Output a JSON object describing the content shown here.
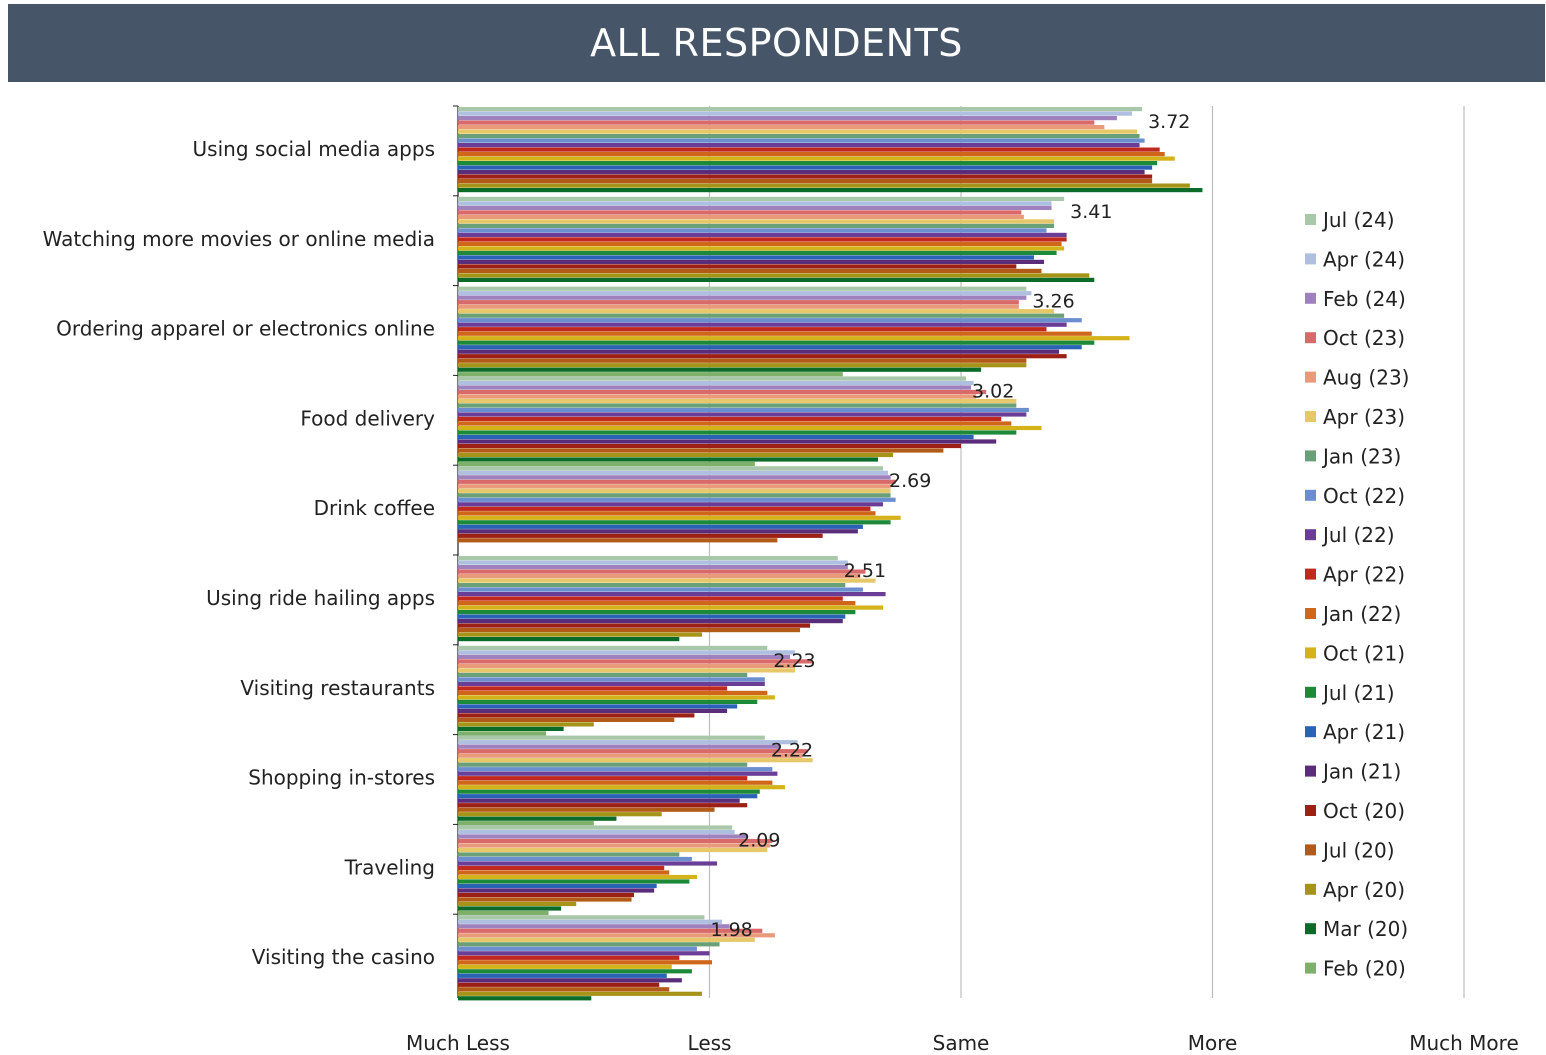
{
  "title": "ALL RESPONDENTS",
  "chart_data": {
    "type": "bar",
    "orientation": "horizontal",
    "title": "ALL RESPONDENTS",
    "xlim": [
      1,
      5
    ],
    "x_tick_labels": [
      "Much Less",
      "Less",
      "Same",
      "More",
      "Much More"
    ],
    "categories": [
      "Using social media apps",
      "Watching more movies or online media",
      "Ordering apparel or electronics online",
      "Food delivery",
      "Drink coffee",
      "Using ride hailing apps",
      "Visiting restaurants",
      "Shopping in-stores",
      "Traveling",
      "Visiting the casino"
    ],
    "data_labels": [
      "3.72",
      "3.41",
      "3.26",
      "3.02",
      "2.69",
      "2.51",
      "2.23",
      "2.22",
      "2.09",
      "1.98"
    ],
    "legend_position": "right",
    "grid": true,
    "series": [
      {
        "name": "Jul (24)",
        "color": "#a9c8a9",
        "values": [
          3.72,
          3.41,
          3.26,
          3.02,
          2.69,
          2.51,
          2.23,
          2.22,
          2.09,
          1.98
        ]
      },
      {
        "name": "Apr (24)",
        "color": "#aebfe0",
        "values": [
          3.68,
          3.36,
          3.28,
          3.05,
          2.71,
          2.55,
          2.34,
          2.35,
          2.1,
          2.05
        ]
      },
      {
        "name": "Feb (24)",
        "color": "#9f82bd",
        "values": [
          3.62,
          3.36,
          3.26,
          3.04,
          2.72,
          2.55,
          2.32,
          2.28,
          2.15,
          2.08
        ]
      },
      {
        "name": "Oct (23)",
        "color": "#d96a6a",
        "values": [
          3.53,
          3.24,
          3.23,
          3.1,
          2.74,
          2.62,
          2.41,
          2.39,
          2.25,
          2.21
        ]
      },
      {
        "name": "Aug (23)",
        "color": "#e89a7a",
        "values": [
          3.57,
          3.25,
          3.23,
          3.06,
          2.72,
          2.6,
          2.34,
          2.37,
          2.24,
          2.26
        ]
      },
      {
        "name": "Apr (23)",
        "color": "#e6c76a",
        "values": [
          3.7,
          3.37,
          3.37,
          3.22,
          2.72,
          2.66,
          2.34,
          2.41,
          2.23,
          2.18
        ]
      },
      {
        "name": "Jan (23)",
        "color": "#6aa077",
        "values": [
          3.71,
          3.37,
          3.41,
          3.22,
          2.72,
          2.54,
          2.15,
          2.15,
          1.88,
          2.04
        ]
      },
      {
        "name": "Oct (22)",
        "color": "#6b8ecf",
        "values": [
          3.73,
          3.34,
          3.48,
          3.27,
          2.74,
          2.61,
          2.22,
          2.25,
          1.93,
          1.95
        ]
      },
      {
        "name": "Jul (22)",
        "color": "#6a3d96",
        "values": [
          3.71,
          3.42,
          3.42,
          3.26,
          2.69,
          2.7,
          2.22,
          2.27,
          2.03,
          2.0
        ]
      },
      {
        "name": "Apr (22)",
        "color": "#c0291d",
        "values": [
          3.79,
          3.42,
          3.34,
          3.16,
          2.64,
          2.53,
          2.07,
          2.15,
          1.82,
          1.88
        ]
      },
      {
        "name": "Jan (22)",
        "color": "#d0661a",
        "values": [
          3.81,
          3.4,
          3.52,
          3.2,
          2.66,
          2.58,
          2.23,
          2.25,
          1.84,
          2.01
        ]
      },
      {
        "name": "Oct (21)",
        "color": "#d4b21a",
        "values": [
          3.85,
          3.41,
          3.67,
          3.32,
          2.76,
          2.69,
          2.26,
          2.3,
          1.95,
          1.85
        ]
      },
      {
        "name": "Jul (21)",
        "color": "#1d8a3a",
        "values": [
          3.78,
          3.38,
          3.53,
          3.22,
          2.72,
          2.58,
          2.19,
          2.2,
          1.92,
          1.93
        ]
      },
      {
        "name": "Apr (21)",
        "color": "#2a62b5",
        "values": [
          3.76,
          3.29,
          3.48,
          3.05,
          2.61,
          2.54,
          2.11,
          2.19,
          1.79,
          1.83
        ]
      },
      {
        "name": "Jan (21)",
        "color": "#5a2d7a",
        "values": [
          3.73,
          3.33,
          3.39,
          3.14,
          2.59,
          2.53,
          2.07,
          2.12,
          1.78,
          1.89
        ]
      },
      {
        "name": "Oct (20)",
        "color": "#9c2016",
        "values": [
          3.76,
          3.22,
          3.42,
          3.0,
          2.45,
          2.4,
          1.94,
          2.15,
          1.7,
          1.8
        ]
      },
      {
        "name": "Jul (20)",
        "color": "#b25a17",
        "values": [
          3.76,
          3.32,
          3.26,
          2.93,
          2.27,
          2.36,
          1.86,
          2.02,
          1.69,
          1.84
        ]
      },
      {
        "name": "Apr (20)",
        "color": "#a69418",
        "values": [
          3.91,
          3.51,
          3.26,
          2.73,
          null,
          1.97,
          1.54,
          1.81,
          1.47,
          1.97
        ]
      },
      {
        "name": "Mar (20)",
        "color": "#0d6b2a",
        "values": [
          3.96,
          3.53,
          3.08,
          2.67,
          null,
          1.88,
          1.42,
          1.63,
          1.41,
          1.53
        ]
      },
      {
        "name": "Feb (20)",
        "color": "#7fb06a",
        "values": [
          null,
          null,
          2.53,
          2.18,
          null,
          null,
          1.35,
          1.54,
          1.36,
          null
        ]
      }
    ]
  }
}
